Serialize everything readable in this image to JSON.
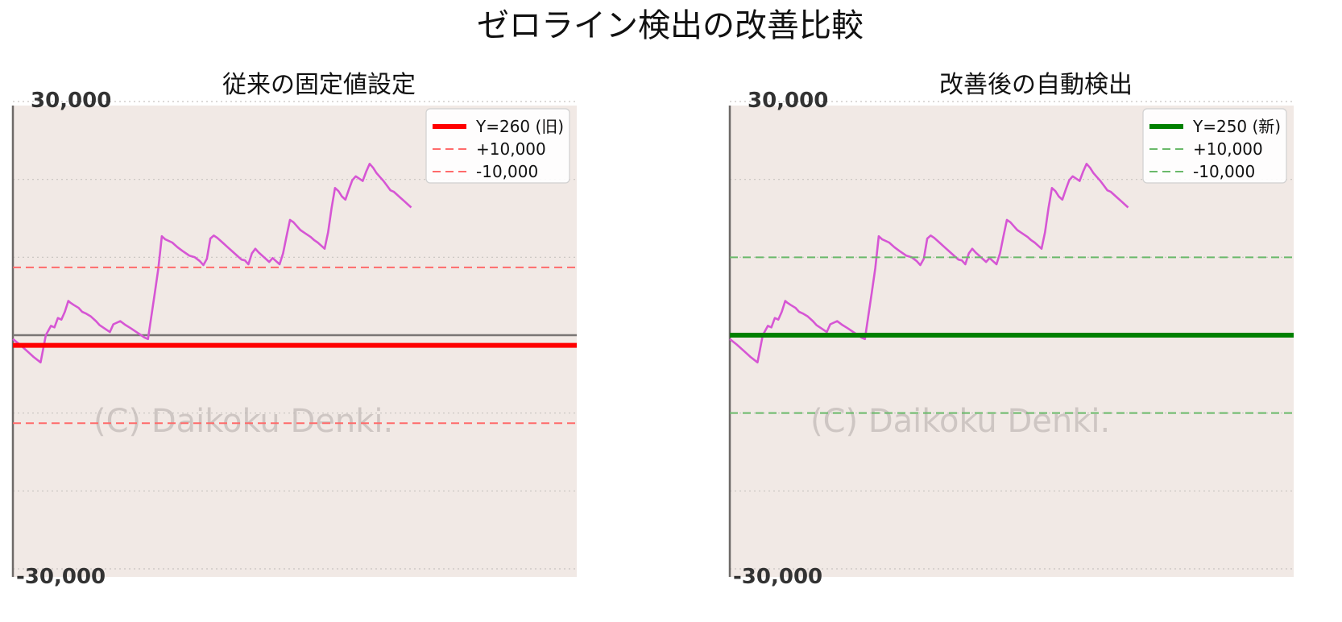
{
  "title": "ゼロライン検出の改善比較",
  "watermark": "(C) Daikoku Denki.",
  "chart_data": [
    {
      "type": "line",
      "title": "従来の固定値設定",
      "tick_labels": [
        "30,000",
        "-30,000"
      ],
      "ylim": [
        -30000,
        30000
      ],
      "background": "#f1e9e5",
      "line_color": "#d656d4",
      "series": [
        {
          "x": [
            0,
            4,
            8,
            12,
            16,
            19,
            22,
            24,
            26,
            28,
            30,
            32,
            33,
            35,
            38,
            40,
            42,
            45,
            48,
            50,
            52,
            54,
            56,
            58,
            62,
            65,
            68,
            70,
            72,
            74,
            76,
            78,
            80,
            82,
            84,
            86,
            88,
            92,
            95,
            98,
            100,
            102,
            105,
            108,
            110,
            112,
            114,
            116,
            118,
            120,
            122,
            124,
            126,
            128,
            130,
            132,
            134,
            136,
            138,
            140,
            142,
            145,
            148,
            150,
            152,
            154,
            156,
            158,
            160,
            162,
            164,
            166,
            168,
            170,
            172,
            174,
            176,
            178,
            180,
            182,
            184,
            186,
            188,
            190,
            192,
            194,
            196,
            198,
            200,
            202,
            204,
            206,
            208,
            210,
            212,
            214,
            216,
            218,
            220,
            222,
            224,
            226,
            228,
            230
          ],
          "y": [
            -500,
            -1200,
            -2000,
            -2800,
            -3500,
            0,
            1200,
            1000,
            2200,
            2000,
            3000,
            4400,
            4200,
            3900,
            3500,
            3000,
            2800,
            2400,
            1800,
            1300,
            1000,
            700,
            400,
            1400,
            1800,
            1300,
            900,
            600,
            300,
            0,
            -300,
            -500,
            2500,
            5500,
            8600,
            12700,
            12300,
            11900,
            11300,
            10800,
            10500,
            10200,
            10000,
            9500,
            9000,
            9800,
            12400,
            12800,
            12500,
            12100,
            11700,
            11300,
            10900,
            10500,
            10100,
            9700,
            9600,
            9100,
            10500,
            11100,
            10600,
            10000,
            9400,
            9900,
            9500,
            9100,
            10500,
            12700,
            14800,
            14500,
            14000,
            13500,
            13200,
            12900,
            12600,
            12200,
            11900,
            11500,
            11100,
            13200,
            16300,
            18900,
            18500,
            17800,
            17400,
            18700,
            19900,
            20400,
            20100,
            19800,
            21000,
            22000,
            21500,
            20800,
            20300,
            19800,
            19200,
            18600,
            18400,
            18000,
            17600,
            17200,
            16800,
            16400
          ]
        }
      ],
      "zero_line_y": -1300,
      "axis_zero_y": 0,
      "guide_offsets": [
        10000,
        -10000
      ],
      "legend": [
        {
          "label": "Y=260 (旧)",
          "color": "#ff0000",
          "style": "solid"
        },
        {
          "label": "+10,000",
          "color": "#ff6b6b",
          "style": "dashed"
        },
        {
          "label": "-10,000",
          "color": "#ff6b6b",
          "style": "dashed"
        }
      ],
      "legend_position": "top-right",
      "grid": true
    },
    {
      "type": "line",
      "title": "改善後の自動検出",
      "tick_labels": [
        "30,000",
        "-30,000"
      ],
      "ylim": [
        -30000,
        30000
      ],
      "background": "#f1e9e5",
      "line_color": "#d656d4",
      "series": [
        {
          "x": [
            0,
            4,
            8,
            12,
            16,
            19,
            22,
            24,
            26,
            28,
            30,
            32,
            33,
            35,
            38,
            40,
            42,
            45,
            48,
            50,
            52,
            54,
            56,
            58,
            62,
            65,
            68,
            70,
            72,
            74,
            76,
            78,
            80,
            82,
            84,
            86,
            88,
            92,
            95,
            98,
            100,
            102,
            105,
            108,
            110,
            112,
            114,
            116,
            118,
            120,
            122,
            124,
            126,
            128,
            130,
            132,
            134,
            136,
            138,
            140,
            142,
            145,
            148,
            150,
            152,
            154,
            156,
            158,
            160,
            162,
            164,
            166,
            168,
            170,
            172,
            174,
            176,
            178,
            180,
            182,
            184,
            186,
            188,
            190,
            192,
            194,
            196,
            198,
            200,
            202,
            204,
            206,
            208,
            210,
            212,
            214,
            216,
            218,
            220,
            222,
            224,
            226,
            228,
            230
          ],
          "y": [
            -500,
            -1200,
            -2000,
            -2800,
            -3500,
            0,
            1200,
            1000,
            2200,
            2000,
            3000,
            4400,
            4200,
            3900,
            3500,
            3000,
            2800,
            2400,
            1800,
            1300,
            1000,
            700,
            400,
            1400,
            1800,
            1300,
            900,
            600,
            300,
            0,
            -300,
            -500,
            2500,
            5500,
            8600,
            12700,
            12300,
            11900,
            11300,
            10800,
            10500,
            10200,
            10000,
            9500,
            9000,
            9800,
            12400,
            12800,
            12500,
            12100,
            11700,
            11300,
            10900,
            10500,
            10100,
            9700,
            9600,
            9100,
            10500,
            11100,
            10600,
            10000,
            9400,
            9900,
            9500,
            9100,
            10500,
            12700,
            14800,
            14500,
            14000,
            13500,
            13200,
            12900,
            12600,
            12200,
            11900,
            11500,
            11100,
            13200,
            16300,
            18900,
            18500,
            17800,
            17400,
            18700,
            19900,
            20400,
            20100,
            19800,
            21000,
            22000,
            21500,
            20800,
            20300,
            19800,
            19200,
            18600,
            18400,
            18000,
            17600,
            17200,
            16800,
            16400
          ]
        }
      ],
      "zero_line_y": 0,
      "axis_zero_y": 0,
      "guide_offsets": [
        10000,
        -10000
      ],
      "legend": [
        {
          "label": "Y=250 (新)",
          "color": "#008000",
          "style": "solid"
        },
        {
          "label": "+10,000",
          "color": "#6ab96a",
          "style": "dashed"
        },
        {
          "label": "-10,000",
          "color": "#6ab96a",
          "style": "dashed"
        }
      ],
      "legend_position": "top-right",
      "grid": true
    }
  ]
}
